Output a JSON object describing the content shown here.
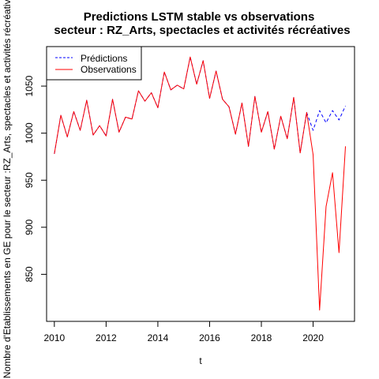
{
  "chart_data": {
    "type": "line",
    "title": "Predictions LSTM stable vs observations",
    "subtitle": "secteur : RZ_Arts, spectacles et activités récréatives",
    "xlabel": "t",
    "ylabel": "Nombre d'Etablissements en GE pour le secteur :RZ_Arts, spectacles et activités récréatives",
    "xlim": [
      2009.7,
      2021.6
    ],
    "ylim": [
      800,
      1092
    ],
    "x_ticks": [
      2010,
      2012,
      2014,
      2016,
      2018,
      2020
    ],
    "y_ticks": [
      850,
      900,
      950,
      1000,
      1050
    ],
    "grid": false,
    "legend_position": "top-left",
    "series": [
      {
        "name": "Prédictions",
        "color": "#0000FF",
        "style": "dashed",
        "x": [
          2010.0,
          2010.25,
          2010.5,
          2010.75,
          2011.0,
          2011.25,
          2011.5,
          2011.75,
          2012.0,
          2012.25,
          2012.5,
          2012.75,
          2013.0,
          2013.25,
          2013.5,
          2013.75,
          2014.0,
          2014.25,
          2014.5,
          2014.75,
          2015.0,
          2015.25,
          2015.5,
          2015.75,
          2016.0,
          2016.25,
          2016.5,
          2016.75,
          2017.0,
          2017.25,
          2017.5,
          2017.75,
          2018.0,
          2018.25,
          2018.5,
          2018.75,
          2019.0,
          2019.25,
          2019.5,
          2019.75,
          2020.0,
          2020.25,
          2020.5,
          2020.75,
          2021.0,
          2021.25
        ],
        "values": [
          978,
          1019,
          996,
          1023,
          1003,
          1035,
          998,
          1008,
          997,
          1036,
          1001,
          1017,
          1015,
          1045,
          1034,
          1043,
          1027,
          1065,
          1046,
          1051,
          1047,
          1081,
          1052,
          1077,
          1037,
          1066,
          1036,
          1028,
          999,
          1032,
          986,
          1039,
          1001,
          1023,
          983,
          1018,
          994,
          1038,
          979,
          1022,
          1003,
          1024,
          1011,
          1024,
          1014,
          1029
        ]
      },
      {
        "name": "Observations",
        "color": "#FF0000",
        "style": "solid",
        "x": [
          2010.0,
          2010.25,
          2010.5,
          2010.75,
          2011.0,
          2011.25,
          2011.5,
          2011.75,
          2012.0,
          2012.25,
          2012.5,
          2012.75,
          2013.0,
          2013.25,
          2013.5,
          2013.75,
          2014.0,
          2014.25,
          2014.5,
          2014.75,
          2015.0,
          2015.25,
          2015.5,
          2015.75,
          2016.0,
          2016.25,
          2016.5,
          2016.75,
          2017.0,
          2017.25,
          2017.5,
          2017.75,
          2018.0,
          2018.25,
          2018.5,
          2018.75,
          2019.0,
          2019.25,
          2019.5,
          2019.75,
          2020.0,
          2020.25,
          2020.5,
          2020.75,
          2021.0,
          2021.25
        ],
        "values": [
          978,
          1019,
          996,
          1023,
          1003,
          1035,
          998,
          1008,
          997,
          1036,
          1001,
          1017,
          1015,
          1045,
          1034,
          1043,
          1027,
          1065,
          1046,
          1051,
          1047,
          1081,
          1052,
          1077,
          1037,
          1066,
          1036,
          1028,
          999,
          1032,
          986,
          1039,
          1001,
          1023,
          983,
          1018,
          994,
          1038,
          979,
          1022,
          977,
          812,
          922,
          958,
          873,
          986
        ]
      }
    ]
  }
}
